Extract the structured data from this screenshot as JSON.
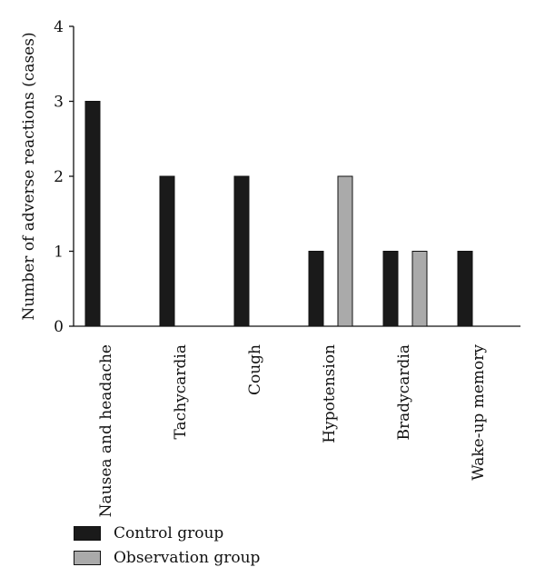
{
  "chart_data": {
    "type": "bar",
    "title": "",
    "xlabel": "",
    "ylabel": "Number of adverse reactions (cases)",
    "ylim": [
      0,
      4
    ],
    "yticks": [
      "0",
      "1",
      "2",
      "3",
      "4"
    ],
    "categories": [
      "Nausea and headache",
      "Tachycardia",
      "Cough",
      "Hypotension",
      "Bradycardia",
      "Wake-up memory"
    ],
    "series": [
      {
        "name": "Control group",
        "color": "#1a1a1a",
        "values": [
          3,
          2,
          2,
          1,
          1,
          1
        ]
      },
      {
        "name": "Observation group",
        "color": "#aaaaaa",
        "values": [
          0,
          0,
          0,
          2,
          1,
          0
        ]
      }
    ],
    "grid": false,
    "legend_position": "bottom-left"
  }
}
